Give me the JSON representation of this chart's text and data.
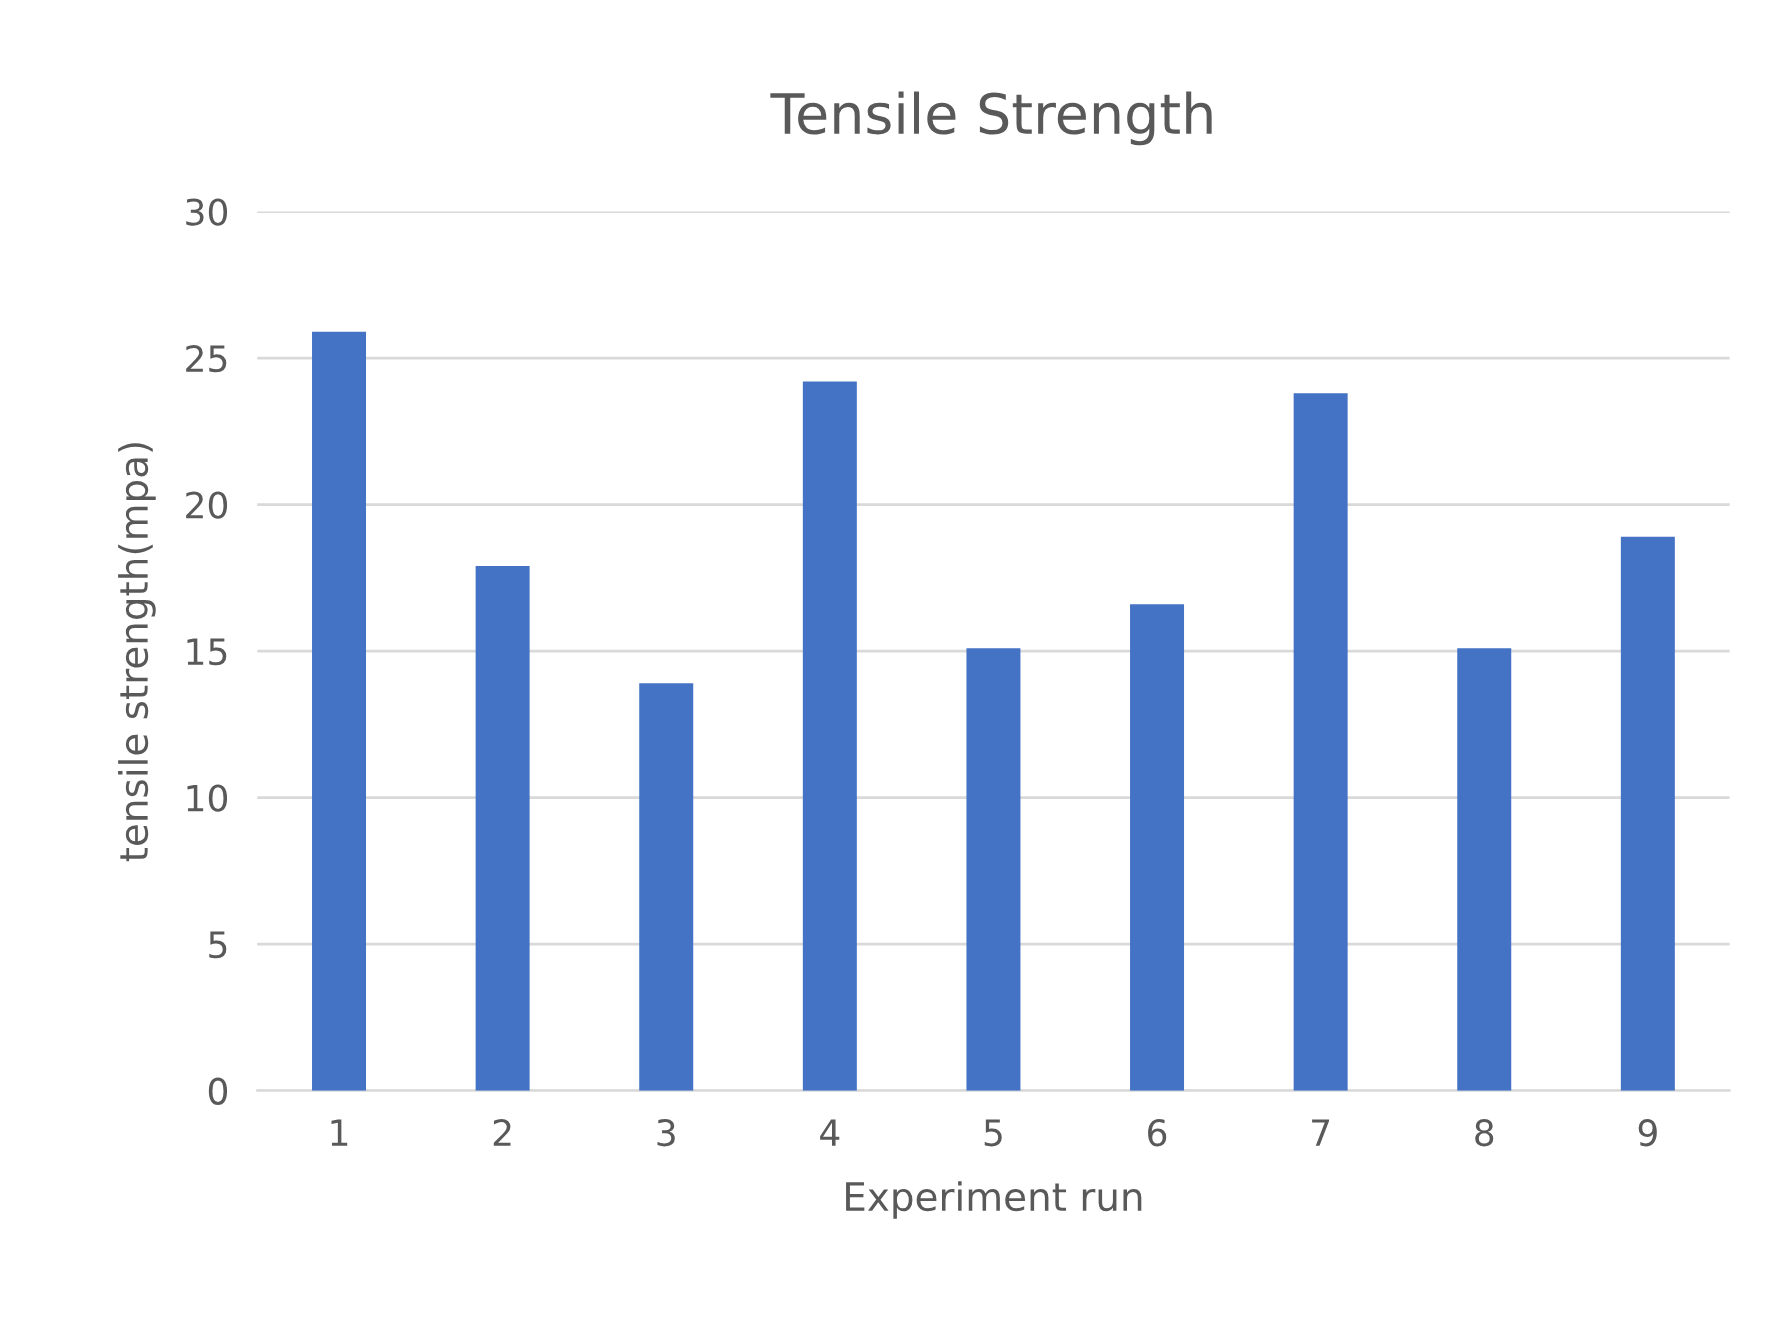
{
  "chart_data": {
    "type": "bar",
    "title": "Tensile Strength",
    "xlabel": "Experiment run",
    "ylabel": "tensile strength(mpa)",
    "categories": [
      "1",
      "2",
      "3",
      "4",
      "5",
      "6",
      "7",
      "8",
      "9"
    ],
    "values": [
      25.9,
      17.9,
      13.9,
      24.2,
      15.1,
      16.6,
      23.8,
      15.1,
      18.9
    ],
    "color": "#4472c4",
    "ylim": [
      0,
      30
    ],
    "yticks": [
      0,
      5,
      10,
      15,
      20,
      25,
      30
    ],
    "grid": "y"
  }
}
